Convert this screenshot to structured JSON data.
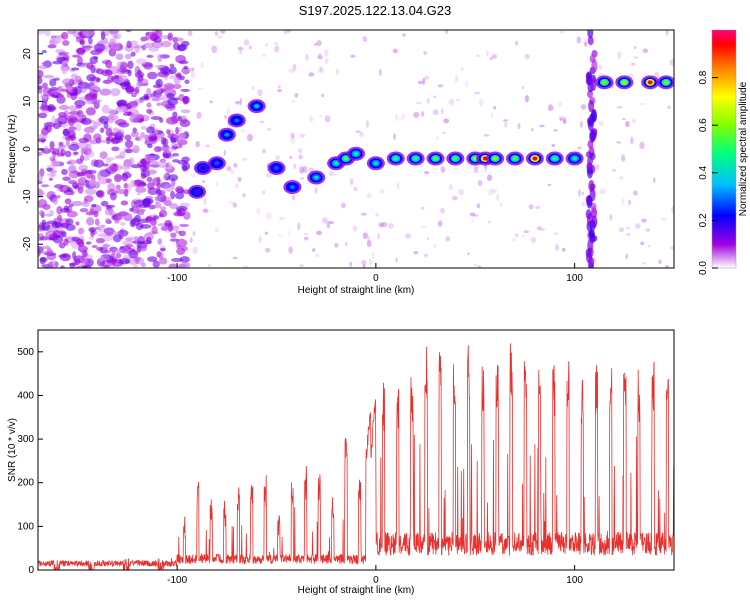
{
  "title": "S197.2025.122.13.04.G23",
  "chart_data": [
    {
      "type": "heatmap",
      "xlabel": "Height of straight line (km)",
      "ylabel": "Frequency (Hz)",
      "xlim": [
        -170,
        150
      ],
      "ylim": [
        -25,
        25
      ],
      "xticks": [
        -100,
        0,
        100
      ],
      "yticks": [
        -20,
        -10,
        0,
        10,
        20
      ],
      "colorbar": {
        "label": "Normalized spectral amplitude",
        "range": [
          0,
          1
        ],
        "ticks": [
          0.0,
          0.2,
          0.4,
          0.6,
          0.8
        ]
      },
      "tracks": [
        {
          "x": -90,
          "y": -9,
          "v": 0.25
        },
        {
          "x": -87,
          "y": -4,
          "v": 0.22
        },
        {
          "x": -80,
          "y": -3,
          "v": 0.28
        },
        {
          "x": -75,
          "y": 3,
          "v": 0.32
        },
        {
          "x": -70,
          "y": 6,
          "v": 0.3
        },
        {
          "x": -60,
          "y": 9,
          "v": 0.35
        },
        {
          "x": -50,
          "y": -4,
          "v": 0.28
        },
        {
          "x": -42,
          "y": -8,
          "v": 0.3
        },
        {
          "x": -30,
          "y": -6,
          "v": 0.4
        },
        {
          "x": -20,
          "y": -3,
          "v": 0.45
        },
        {
          "x": -15,
          "y": -2,
          "v": 0.55
        },
        {
          "x": -10,
          "y": -1,
          "v": 0.45
        },
        {
          "x": 0,
          "y": -3,
          "v": 0.42
        },
        {
          "x": 10,
          "y": -2,
          "v": 0.5
        },
        {
          "x": 20,
          "y": -2,
          "v": 0.5
        },
        {
          "x": 30,
          "y": -2,
          "v": 0.55
        },
        {
          "x": 40,
          "y": -2,
          "v": 0.55
        },
        {
          "x": 50,
          "y": -2,
          "v": 0.6
        },
        {
          "x": 55,
          "y": -2,
          "v": 0.95
        },
        {
          "x": 60,
          "y": -2,
          "v": 0.6
        },
        {
          "x": 70,
          "y": -2,
          "v": 0.55
        },
        {
          "x": 80,
          "y": -2,
          "v": 0.95
        },
        {
          "x": 90,
          "y": -2,
          "v": 0.5
        },
        {
          "x": 100,
          "y": -2,
          "v": 0.45
        },
        {
          "x": 115,
          "y": 14,
          "v": 0.6
        },
        {
          "x": 125,
          "y": 14,
          "v": 0.65
        },
        {
          "x": 138,
          "y": 14,
          "v": 0.95
        },
        {
          "x": 146,
          "y": 14,
          "v": 0.6
        }
      ]
    },
    {
      "type": "line",
      "xlabel": "Height of straight line (km)",
      "ylabel": "SNR (10 * v/v)",
      "xlim": [
        -170,
        150
      ],
      "ylim": [
        0,
        550
      ],
      "xticks": [
        -100,
        0,
        100
      ],
      "yticks": [
        0,
        100,
        200,
        300,
        400,
        500
      ],
      "color": "#e8312e",
      "segments": [
        {
          "x_start": -170,
          "x_end": -100,
          "baseline": 15,
          "peaks": [
            30,
            25,
            35,
            40
          ]
        },
        {
          "x_start": -100,
          "x_end": -5,
          "baseline": 25,
          "peaks": [
            130,
            210,
            180,
            165,
            200,
            215,
            240,
            140,
            235,
            260,
            240,
            170,
            320,
            250
          ]
        },
        {
          "x_start": -5,
          "x_end": 0,
          "baseline": 250,
          "peaks": [
            380,
            420
          ]
        },
        {
          "x_start": 0,
          "x_end": 150,
          "baseline": 60,
          "peaks": [
            440,
            460,
            490,
            520,
            530,
            510,
            540,
            500,
            520,
            530,
            500,
            510,
            490,
            520,
            480,
            500,
            510,
            470,
            490,
            500,
            480
          ]
        }
      ]
    }
  ]
}
